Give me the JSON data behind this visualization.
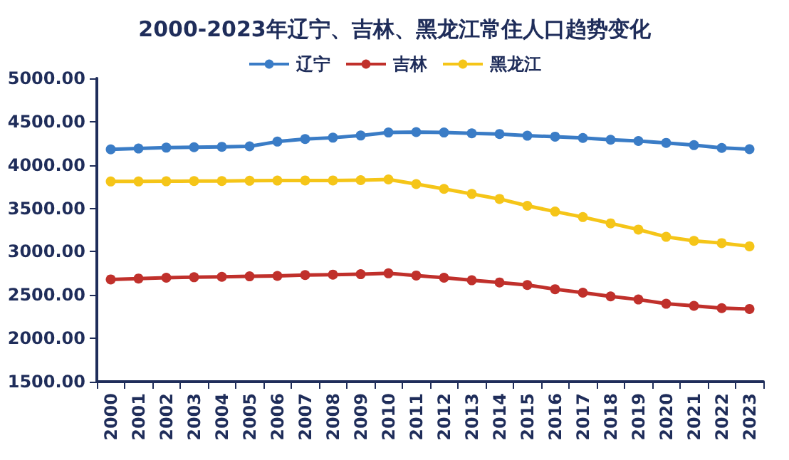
{
  "chart_data": {
    "type": "line",
    "title": "2000-2023年辽宁、吉林、黑龙江常住人口趋势变化",
    "categories": [
      "2000",
      "2001",
      "2002",
      "2003",
      "2004",
      "2005",
      "2006",
      "2007",
      "2008",
      "2009",
      "2010",
      "2011",
      "2012",
      "2013",
      "2014",
      "2015",
      "2016",
      "2017",
      "2018",
      "2019",
      "2020",
      "2021",
      "2022",
      "2023"
    ],
    "series": [
      {
        "name": "辽宁",
        "color": "#3a7cc6",
        "values": [
          4180,
          4190,
          4200,
          4205,
          4210,
          4215,
          4270,
          4300,
          4315,
          4340,
          4375,
          4380,
          4375,
          4365,
          4358,
          4338,
          4327,
          4312,
          4291,
          4277,
          4255,
          4229,
          4197,
          4182
        ]
      },
      {
        "name": "吉林",
        "color": "#c0302b",
        "values": [
          2680,
          2690,
          2700,
          2705,
          2710,
          2715,
          2720,
          2730,
          2735,
          2740,
          2750,
          2725,
          2700,
          2670,
          2645,
          2615,
          2567,
          2527,
          2484,
          2448,
          2399,
          2375,
          2348,
          2339
        ]
      },
      {
        "name": "黑龙江",
        "color": "#f5c518",
        "values": [
          3810,
          3810,
          3812,
          3815,
          3815,
          3818,
          3820,
          3822,
          3822,
          3825,
          3833,
          3780,
          3724,
          3666,
          3608,
          3529,
          3463,
          3399,
          3327,
          3255,
          3171,
          3125,
          3099,
          3062
        ]
      }
    ],
    "ylim": [
      1500,
      5000
    ],
    "yticks": [
      {
        "value": 1500,
        "label": "1500.00"
      },
      {
        "value": 2000,
        "label": "2000.00"
      },
      {
        "value": 2500,
        "label": "2500.00"
      },
      {
        "value": 3000,
        "label": "3000.00"
      },
      {
        "value": 3500,
        "label": "3500.00"
      },
      {
        "value": 4000,
        "label": "4000.00"
      },
      {
        "value": 4500,
        "label": "4500.00"
      },
      {
        "value": 5000,
        "label": "5000.00"
      }
    ],
    "grid": false,
    "legend": "top",
    "marker": "circle",
    "line_style": "solid"
  }
}
